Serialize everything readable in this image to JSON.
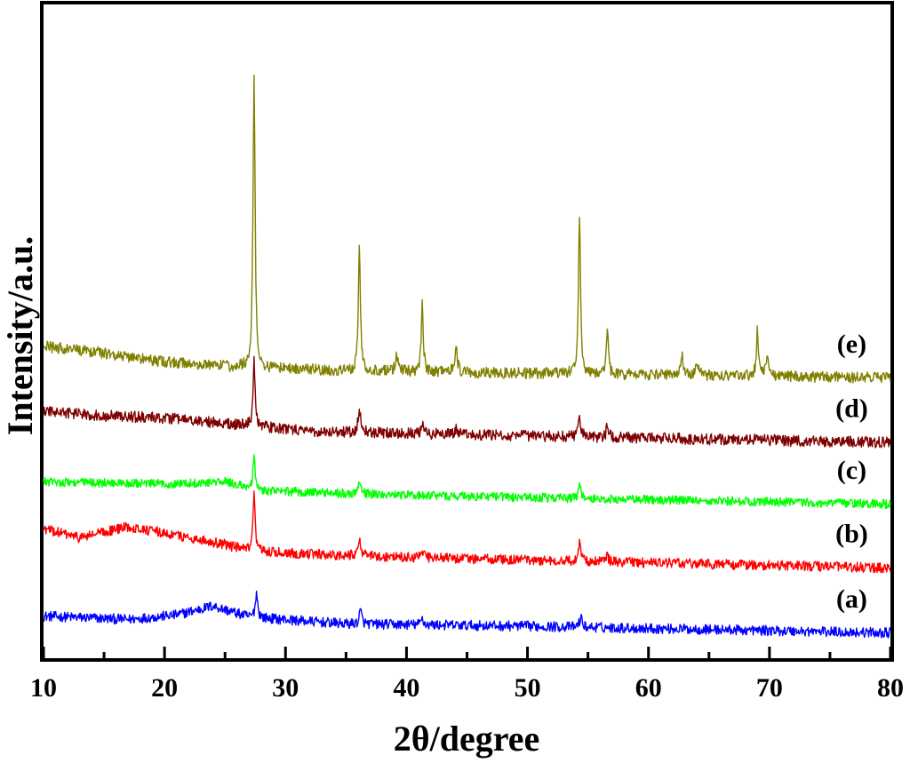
{
  "chart_data": {
    "type": "line",
    "xlabel": "2θ/degree",
    "ylabel": "Intensity/a.u.",
    "xlim": [
      10,
      80
    ],
    "x_ticks_major": [
      10,
      20,
      30,
      40,
      50,
      60,
      70,
      80
    ],
    "x_ticks_minor": [
      15,
      25,
      35,
      45,
      55,
      65,
      75
    ],
    "x_tick_labels": [
      "10",
      "20",
      "30",
      "40",
      "50",
      "60",
      "70",
      "80"
    ],
    "y_ticks_shown": false,
    "grid": false,
    "legend": "none",
    "series": [
      {
        "name": "(a)",
        "color": "#0000ff",
        "offset": 0.0,
        "noise": 0.045,
        "background": [
          [
            10,
            0.17
          ],
          [
            17,
            0.14
          ],
          [
            21,
            0.18
          ],
          [
            24,
            0.26
          ],
          [
            27,
            0.16
          ],
          [
            35,
            0.1
          ],
          [
            50,
            0.08
          ],
          [
            80,
            0.02
          ]
        ],
        "peaks": [
          [
            27.6,
            0.22,
            0.12
          ],
          [
            36.2,
            0.12,
            0.12
          ],
          [
            41.3,
            0.06,
            0.12
          ],
          [
            54.4,
            0.09,
            0.12
          ]
        ]
      },
      {
        "name": "(b)",
        "color": "#ff0000",
        "offset": 0.55,
        "noise": 0.045,
        "background": [
          [
            10,
            0.4
          ],
          [
            13,
            0.32
          ],
          [
            17,
            0.42
          ],
          [
            21,
            0.34
          ],
          [
            25,
            0.26
          ],
          [
            27,
            0.2
          ],
          [
            35,
            0.16
          ],
          [
            50,
            0.12
          ],
          [
            80,
            0.05
          ]
        ],
        "peaks": [
          [
            27.4,
            0.5,
            0.1
          ],
          [
            36.1,
            0.18,
            0.12
          ],
          [
            41.3,
            0.06,
            0.12
          ],
          [
            54.3,
            0.16,
            0.12
          ],
          [
            56.6,
            0.05,
            0.12
          ]
        ]
      },
      {
        "name": "(c)",
        "color": "#00ff00",
        "offset": 1.15,
        "noise": 0.04,
        "background": [
          [
            10,
            0.22
          ],
          [
            20,
            0.2
          ],
          [
            25,
            0.22
          ],
          [
            28,
            0.14
          ],
          [
            40,
            0.1
          ],
          [
            60,
            0.06
          ],
          [
            80,
            0.02
          ]
        ],
        "peaks": [
          [
            27.4,
            0.28,
            0.1
          ],
          [
            36.1,
            0.12,
            0.12
          ],
          [
            54.3,
            0.12,
            0.12
          ]
        ]
      },
      {
        "name": "(d)",
        "color": "#7f0000",
        "offset": 1.7,
        "noise": 0.05,
        "background": [
          [
            10,
            0.3
          ],
          [
            15,
            0.26
          ],
          [
            20,
            0.24
          ],
          [
            26,
            0.18
          ],
          [
            32,
            0.12
          ],
          [
            50,
            0.08
          ],
          [
            80,
            0.02
          ]
        ],
        "peaks": [
          [
            27.4,
            0.6,
            0.1
          ],
          [
            36.1,
            0.22,
            0.12
          ],
          [
            41.3,
            0.1,
            0.12
          ],
          [
            44.1,
            0.05,
            0.12
          ],
          [
            54.3,
            0.18,
            0.12
          ],
          [
            56.6,
            0.09,
            0.12
          ],
          [
            69.0,
            0.05,
            0.12
          ]
        ]
      },
      {
        "name": "(e)",
        "color": "#808000",
        "offset": 2.3,
        "noise": 0.05,
        "background": [
          [
            10,
            0.28
          ],
          [
            15,
            0.22
          ],
          [
            20,
            0.14
          ],
          [
            25,
            0.1
          ],
          [
            35,
            0.06
          ],
          [
            80,
            0.0
          ]
        ],
        "peaks": [
          [
            27.4,
            2.6,
            0.1
          ],
          [
            36.1,
            1.12,
            0.1
          ],
          [
            39.2,
            0.16,
            0.12
          ],
          [
            41.3,
            0.6,
            0.1
          ],
          [
            44.1,
            0.22,
            0.12
          ],
          [
            54.3,
            1.4,
            0.1
          ],
          [
            56.6,
            0.38,
            0.1
          ],
          [
            62.8,
            0.16,
            0.12
          ],
          [
            64.0,
            0.12,
            0.12
          ],
          [
            69.0,
            0.4,
            0.1
          ],
          [
            69.8,
            0.2,
            0.1
          ]
        ]
      }
    ]
  }
}
